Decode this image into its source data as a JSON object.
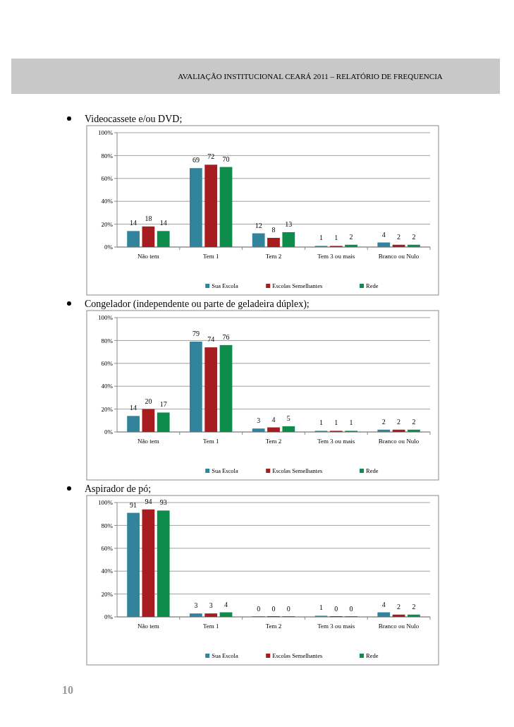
{
  "chart_data": [
    {
      "type": "bar",
      "title": "Videocassete e/ou DVD;",
      "annotations": [
        "AVALIAÇÃO INSTITUCIONAL CEARÁ 2011 – RELATÓRIO DE FREQUENCIA"
      ],
      "categories": [
        "Não tem",
        "Tem 1",
        "Tem 2",
        "Tem 3 ou mais",
        "Branco ou Nulo"
      ],
      "series": [
        {
          "name": "Sua Escola",
          "color": "#31849b",
          "values": [
            14,
            69,
            12,
            1,
            4
          ]
        },
        {
          "name": "Escolas Semelhantes",
          "color": "#a61c1f",
          "values": [
            18,
            72,
            8,
            1,
            2
          ]
        },
        {
          "name": "Rede",
          "color": "#0e8c4b",
          "values": [
            14,
            70,
            13,
            2,
            2
          ]
        }
      ],
      "ylim": [
        0,
        100
      ],
      "yticks": [
        {
          "value": 0,
          "label": "0%"
        },
        {
          "value": 20,
          "label": "20%"
        },
        {
          "value": 40,
          "label": "40%"
        },
        {
          "value": 60,
          "label": "60%"
        },
        {
          "value": 80,
          "label": "80%"
        },
        {
          "value": 100,
          "label": "100%"
        }
      ],
      "grid": "y",
      "legend": "bottom",
      "data_labels": true
    },
    {
      "type": "bar",
      "title": "Congelador (independente ou parte de geladeira dúplex);",
      "categories": [
        "Não tem",
        "Tem 1",
        "Tem 2",
        "Tem 3 ou mais",
        "Branco ou Nulo"
      ],
      "series": [
        {
          "name": "Sua Escola",
          "color": "#31849b",
          "values": [
            14,
            79,
            3,
            1,
            2
          ]
        },
        {
          "name": "Escolas Semelhantes",
          "color": "#a61c1f",
          "values": [
            20,
            74,
            4,
            1,
            2
          ]
        },
        {
          "name": "Rede",
          "color": "#0e8c4b",
          "values": [
            17,
            76,
            5,
            1,
            2
          ]
        }
      ],
      "ylim": [
        0,
        100
      ],
      "yticks": [
        {
          "value": 0,
          "label": "0%"
        },
        {
          "value": 20,
          "label": "20%"
        },
        {
          "value": 40,
          "label": "40%"
        },
        {
          "value": 60,
          "label": "60%"
        },
        {
          "value": 80,
          "label": "80%"
        },
        {
          "value": 100,
          "label": "100%"
        }
      ],
      "grid": "y",
      "legend": "bottom",
      "data_labels": true
    },
    {
      "type": "bar",
      "title": "Aspirador de pó;",
      "annotations": [
        "10"
      ],
      "categories": [
        "Não tem",
        "Tem 1",
        "Tem 2",
        "Tem 3 ou mais",
        "Branco ou Nulo"
      ],
      "series": [
        {
          "name": "Sua Escola",
          "color": "#31849b",
          "values": [
            91,
            3,
            0,
            1,
            4
          ]
        },
        {
          "name": "Escolas Semelhantes",
          "color": "#a61c1f",
          "values": [
            94,
            3,
            0,
            0,
            2
          ]
        },
        {
          "name": "Rede",
          "color": "#0e8c4b",
          "values": [
            93,
            4,
            0,
            0,
            2
          ]
        }
      ],
      "ylim": [
        0,
        100
      ],
      "yticks": [
        {
          "value": 0,
          "label": "0%"
        },
        {
          "value": 20,
          "label": "20%"
        },
        {
          "value": 40,
          "label": "40%"
        },
        {
          "value": 60,
          "label": "60%"
        },
        {
          "value": 80,
          "label": "80%"
        },
        {
          "value": 100,
          "label": "100%"
        }
      ],
      "grid": "y",
      "legend": "bottom",
      "data_labels": true
    }
  ]
}
